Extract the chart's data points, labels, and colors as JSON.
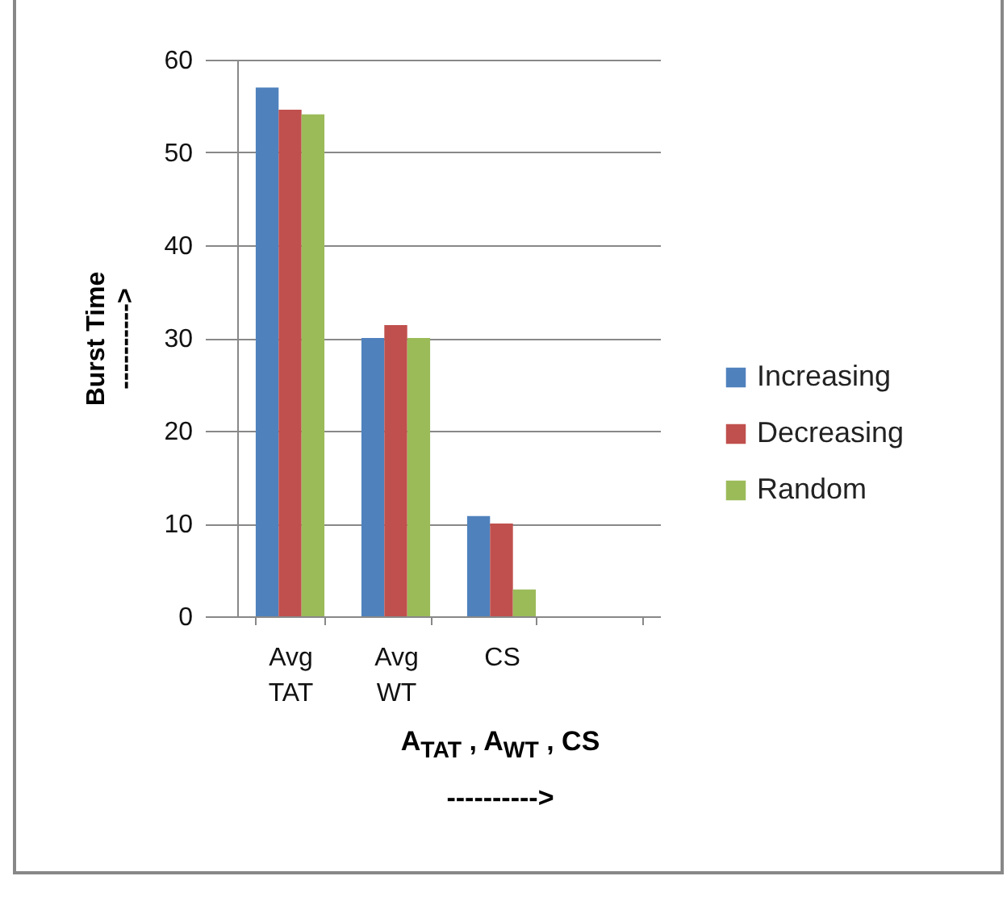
{
  "chart_data": {
    "type": "bar",
    "xlabel": "A$_{TAT}$ , A$_{WT}$ , CS",
    "ylabel": "Burst Time",
    "annotations": [
      "---------->",
      "---------->"
    ],
    "categories": [
      "Avg TAT",
      "Avg WT",
      "CS",
      null
    ],
    "series": [
      {
        "name": "Increasing",
        "color": "#4f81bd",
        "values": [
          57,
          30,
          10.8,
          null
        ]
      },
      {
        "name": "Decreasing",
        "color": "#c0504d",
        "values": [
          54.6,
          31.4,
          10,
          null
        ]
      },
      {
        "name": "Random",
        "color": "#9bbb59",
        "values": [
          54.1,
          30,
          2.9,
          null
        ]
      }
    ],
    "ylim": [
      0,
      60
    ],
    "yticks": [
      0,
      10,
      20,
      30,
      40,
      50,
      60
    ],
    "grid": "y",
    "legend": "right"
  }
}
